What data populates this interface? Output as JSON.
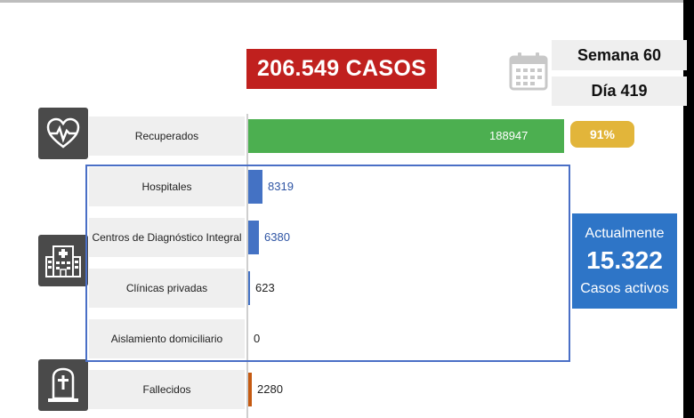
{
  "total_cases": "206.549 CASOS",
  "week_label": "Semana 60",
  "day_label": "Día 419",
  "recovered_pct": "91%",
  "active": {
    "top_label": "Actualmente",
    "number": "15.322",
    "bottom_label": "Casos activos"
  },
  "icons": [
    "calendar-icon",
    "heart-pulse-icon",
    "hospital-icon",
    "tombstone-icon"
  ],
  "chart_data": {
    "type": "bar",
    "orientation": "horizontal",
    "categories": [
      "Recuperados",
      "Hospitales",
      "Centros de Diagnóstico Integral",
      "Clínicas privadas",
      "Aislamiento domiciliario",
      "Fallecidos"
    ],
    "values": [
      188947,
      8319,
      6380,
      623,
      0,
      2280
    ],
    "value_labels": [
      "188947",
      "8319",
      "6380",
      "623",
      "0",
      "2280"
    ],
    "colors": [
      "#4caf50",
      "#4472c4",
      "#4472c4",
      "#4472c4",
      "#4472c4",
      "#c55a11"
    ],
    "xlim": [
      0,
      188947
    ]
  }
}
